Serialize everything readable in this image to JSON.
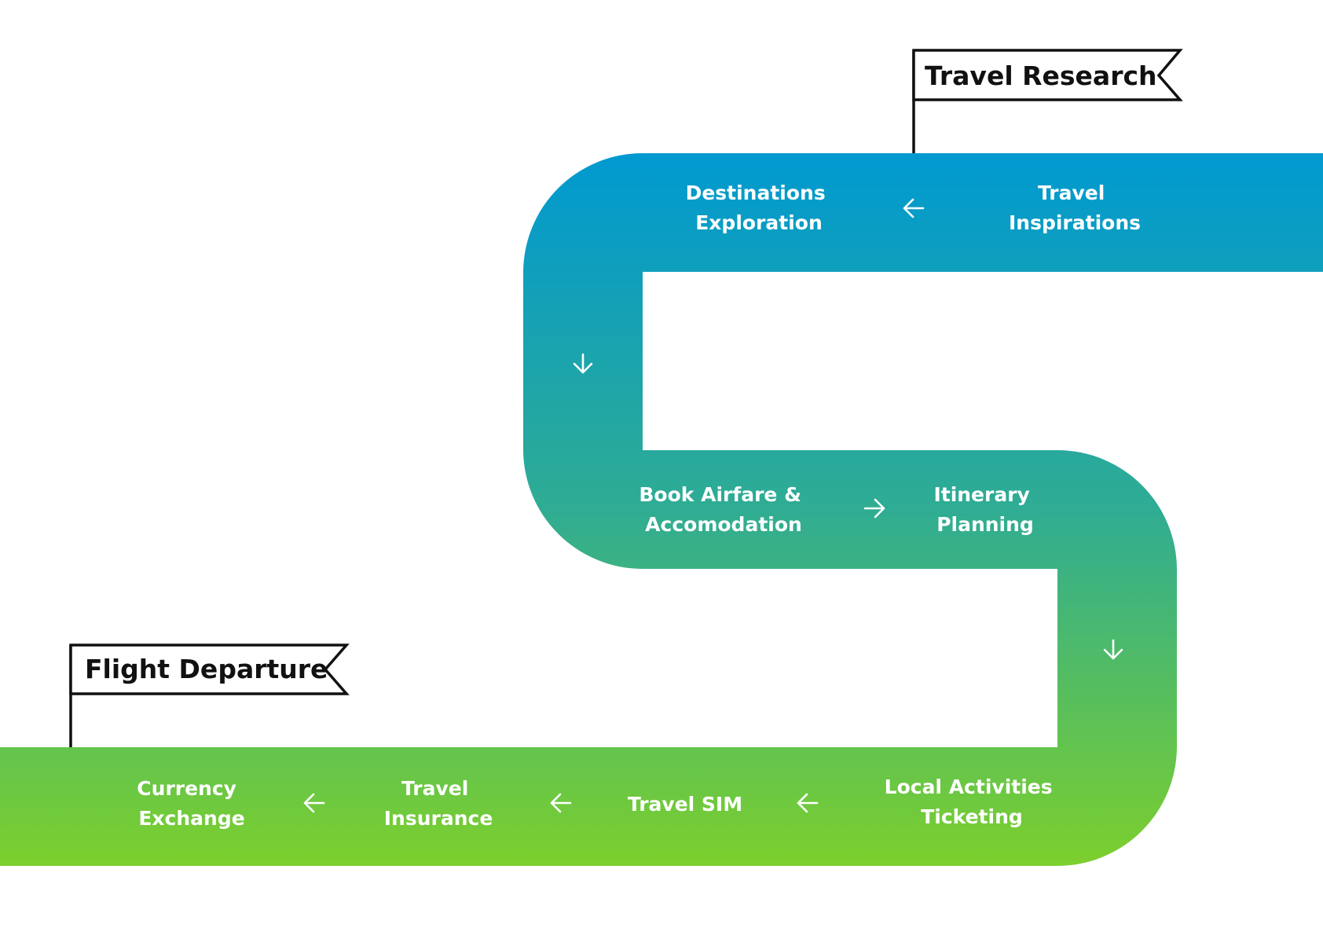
{
  "road": {
    "gradient_top_color": "#0099d1",
    "gradient_mid_color": "#2fac93",
    "gradient_bottom_color": "#7ccf2d"
  },
  "flags": {
    "start_label": "Travel Research",
    "end_label": "Flight Departure"
  },
  "steps": [
    {
      "lines": [
        "Travel",
        "Inspirations"
      ]
    },
    {
      "lines": [
        "Destinations",
        "Exploration"
      ]
    },
    {
      "lines": [
        "Book Airfare &",
        "Accomodation"
      ]
    },
    {
      "lines": [
        "Itinerary",
        "Planning"
      ]
    },
    {
      "lines": [
        "Local Activities",
        "Ticketing"
      ]
    },
    {
      "lines": [
        "Travel SIM"
      ]
    },
    {
      "lines": [
        "Travel",
        "Insurance"
      ]
    },
    {
      "lines": [
        "Currency",
        "Exchange"
      ]
    }
  ],
  "arrows": [
    {
      "direction": "left",
      "icon": "arrow-left-icon"
    },
    {
      "direction": "down",
      "icon": "arrow-down-icon"
    },
    {
      "direction": "right",
      "icon": "arrow-right-icon"
    },
    {
      "direction": "down",
      "icon": "arrow-down-icon"
    },
    {
      "direction": "left",
      "icon": "arrow-left-icon"
    },
    {
      "direction": "left",
      "icon": "arrow-left-icon"
    },
    {
      "direction": "left",
      "icon": "arrow-left-icon"
    }
  ]
}
